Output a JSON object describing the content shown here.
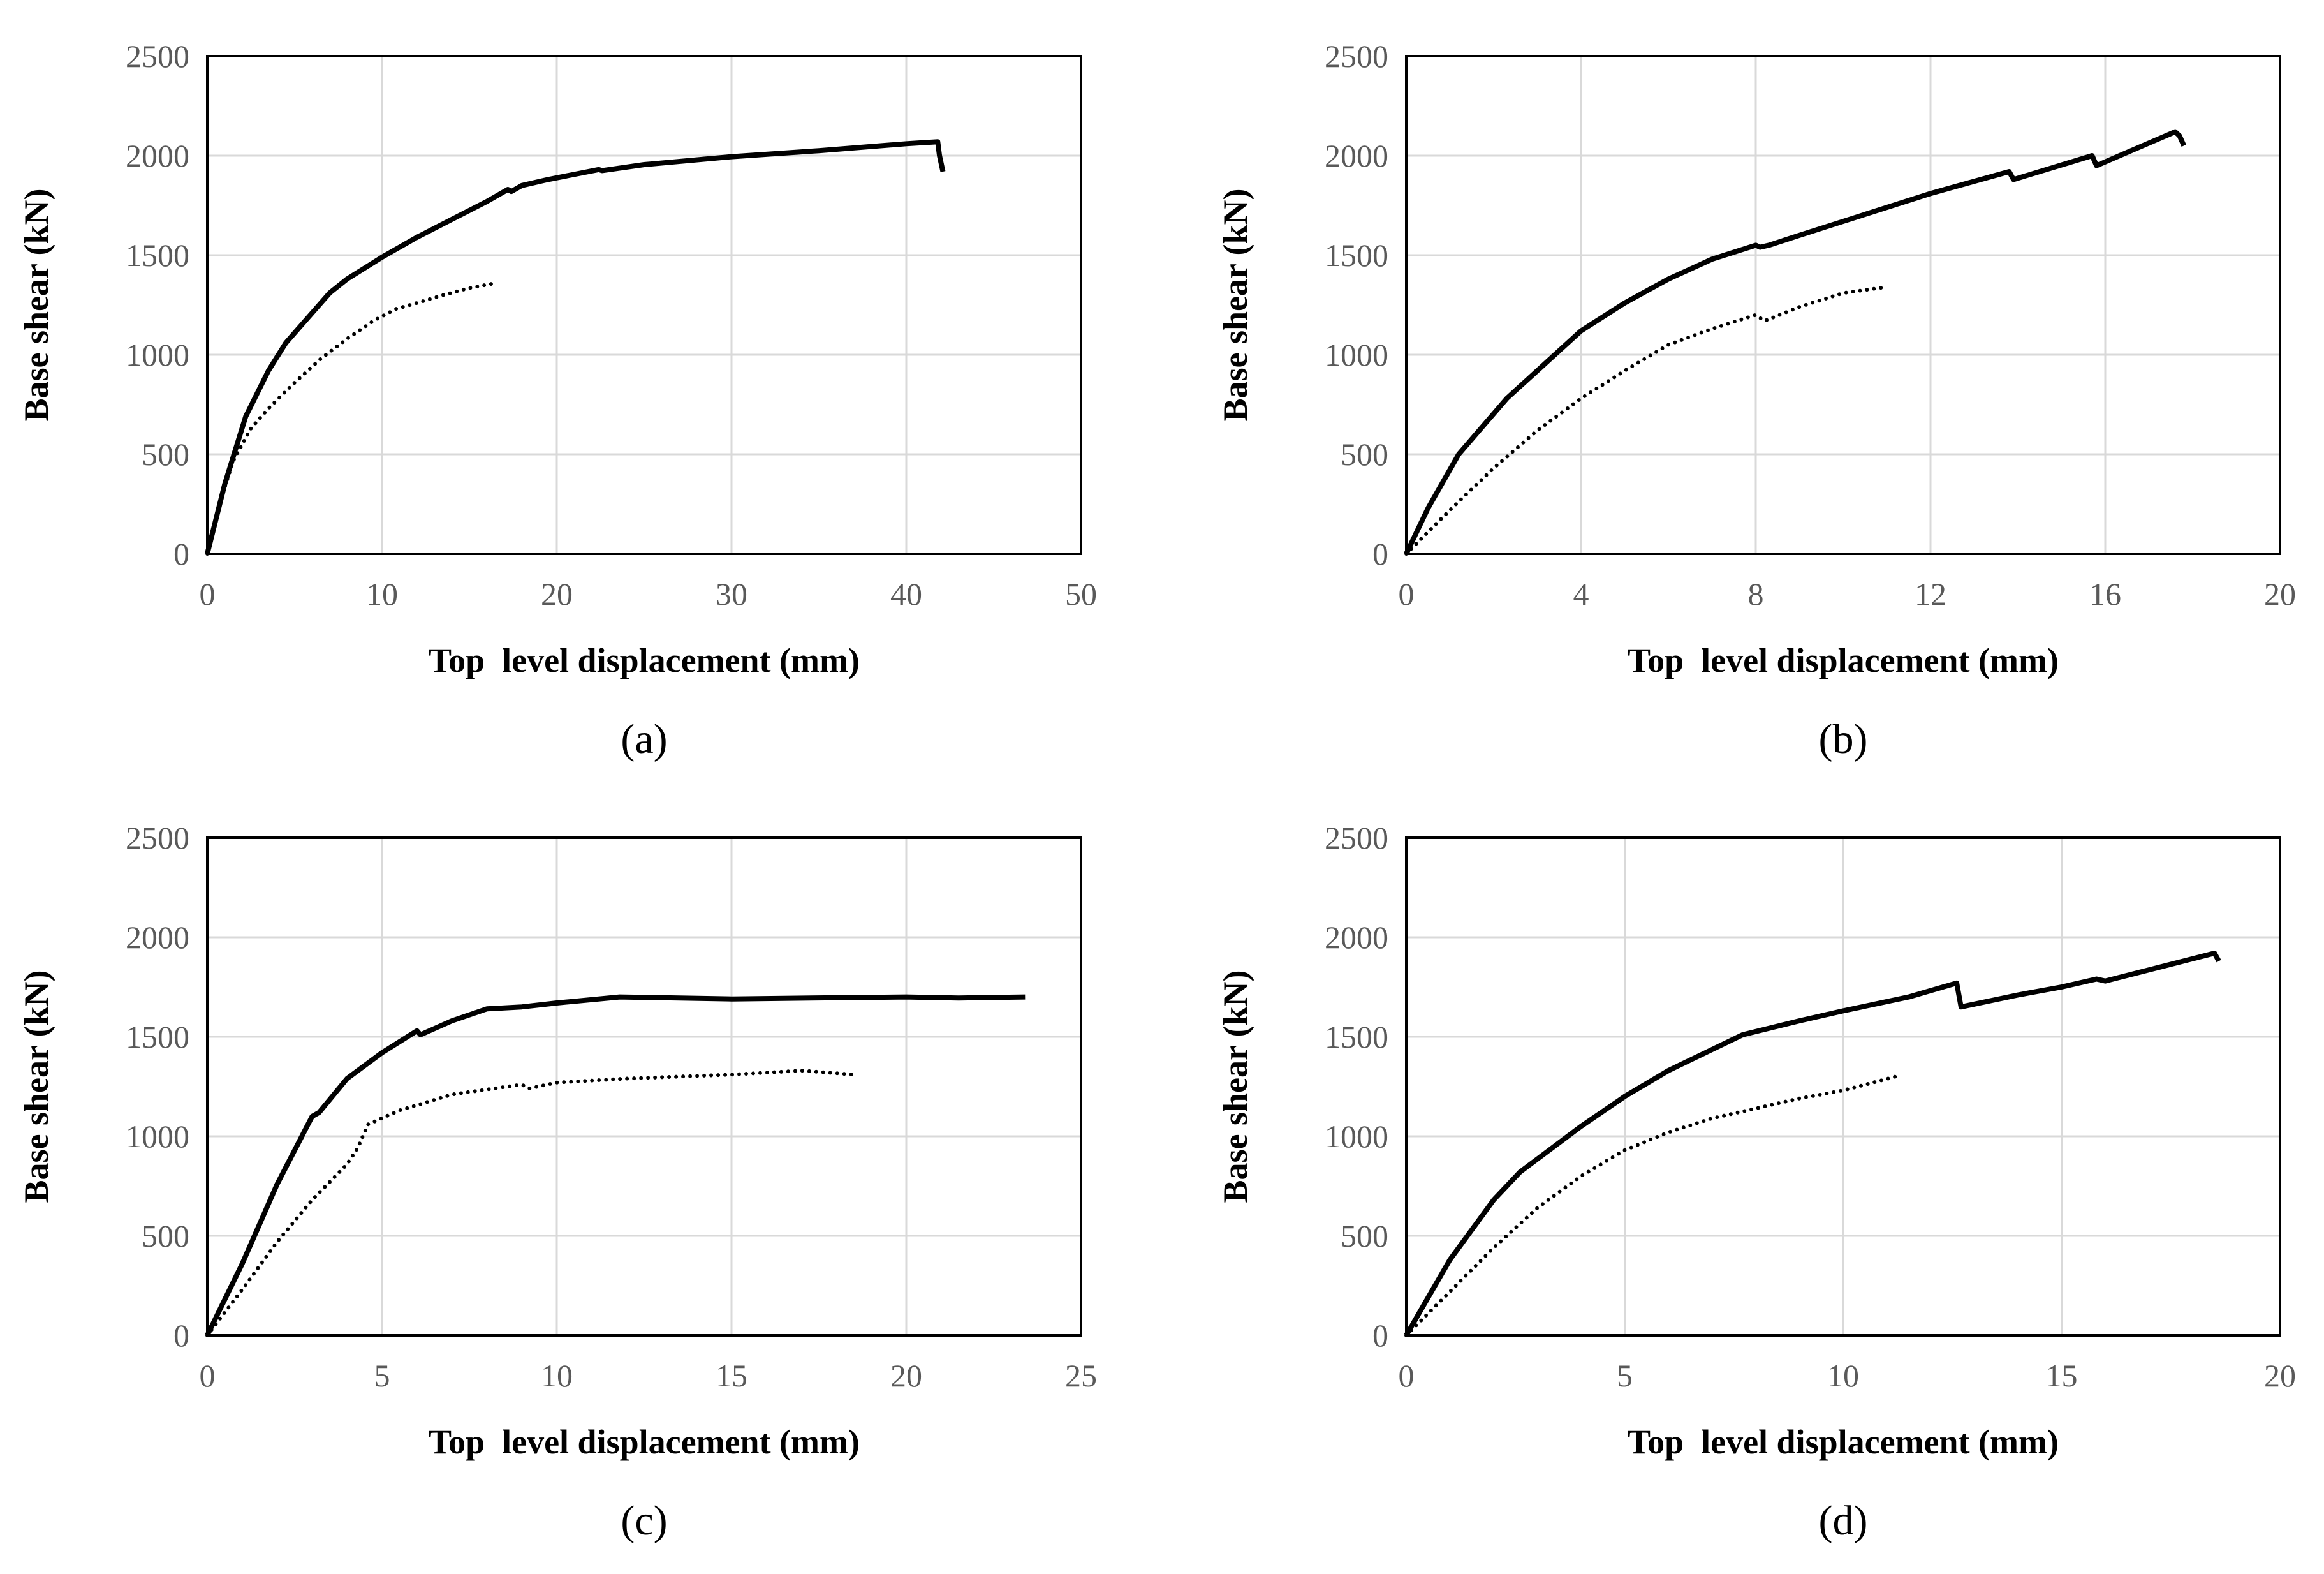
{
  "chart_data": [
    {
      "type": "line",
      "panel": "a",
      "caption": "(a)",
      "xlabel": "Top  level displacement (mm)",
      "ylabel": "Base shear (kN)",
      "xlim": [
        0,
        50
      ],
      "ylim": [
        0,
        2500
      ],
      "xticks": [
        0,
        10,
        20,
        30,
        40,
        50
      ],
      "yticks": [
        0,
        500,
        1000,
        1500,
        2000,
        2500
      ],
      "series": [
        {
          "name": "solid",
          "style": "solid",
          "x": [
            0,
            1,
            2.2,
            3.5,
            4.5,
            6,
            7,
            8,
            10,
            12,
            14,
            16,
            17.2,
            17.4,
            18,
            19.5,
            22.4,
            22.6,
            25,
            30,
            35,
            40,
            41.8,
            41.9,
            42.1
          ],
          "y": [
            0,
            350,
            690,
            920,
            1060,
            1210,
            1310,
            1380,
            1490,
            1590,
            1680,
            1770,
            1830,
            1820,
            1850,
            1880,
            1930,
            1925,
            1955,
            1995,
            2025,
            2060,
            2070,
            2000,
            1920
          ]
        },
        {
          "name": "dotted",
          "style": "dotted",
          "x": [
            0,
            0.8,
            1.5,
            2.5,
            3.5,
            5,
            6.5,
            8,
            9.5,
            10.8,
            12,
            13.5,
            15,
            16.5
          ],
          "y": [
            0,
            280,
            470,
            630,
            730,
            860,
            980,
            1080,
            1170,
            1230,
            1260,
            1300,
            1335,
            1360
          ]
        }
      ]
    },
    {
      "type": "line",
      "panel": "b",
      "caption": "(b)",
      "xlabel": "Top  level displacement (mm)",
      "ylabel": "Base shear (kN)",
      "xlim": [
        0,
        20
      ],
      "ylim": [
        0,
        2500
      ],
      "xticks": [
        0,
        4,
        8,
        12,
        16,
        20
      ],
      "yticks": [
        0,
        500,
        1000,
        1500,
        2000,
        2500
      ],
      "series": [
        {
          "name": "solid",
          "style": "solid",
          "x": [
            0,
            0.5,
            1.2,
            2.3,
            3,
            4,
            5,
            6,
            7,
            8,
            8.1,
            8.3,
            9,
            10,
            12,
            13.8,
            13.9,
            15.7,
            15.8,
            17.6,
            17.7,
            17.8
          ],
          "y": [
            0,
            230,
            500,
            780,
            920,
            1120,
            1260,
            1380,
            1480,
            1550,
            1540,
            1550,
            1600,
            1670,
            1810,
            1920,
            1880,
            2000,
            1950,
            2120,
            2100,
            2050
          ]
        },
        {
          "name": "dotted",
          "style": "dotted",
          "x": [
            0,
            1,
            2,
            3,
            4,
            5,
            6,
            7,
            8,
            8.2,
            9,
            10,
            11
          ],
          "y": [
            0,
            220,
            430,
            620,
            780,
            920,
            1050,
            1130,
            1200,
            1170,
            1240,
            1310,
            1340
          ]
        }
      ]
    },
    {
      "type": "line",
      "panel": "c",
      "caption": "(c)",
      "xlabel": "Top  level displacement (mm)",
      "ylabel": "Base shear (kN)",
      "xlim": [
        0,
        25
      ],
      "ylim": [
        0,
        2500
      ],
      "xticks": [
        0,
        5,
        10,
        15,
        20,
        25
      ],
      "yticks": [
        0,
        500,
        1000,
        1500,
        2000,
        2500
      ],
      "series": [
        {
          "name": "solid",
          "style": "solid",
          "x": [
            0,
            1,
            2,
            3,
            3.2,
            4,
            5,
            6,
            6.1,
            7,
            8,
            9,
            10,
            11.8,
            15,
            20,
            21.5,
            23.4
          ],
          "y": [
            0,
            360,
            760,
            1100,
            1120,
            1290,
            1420,
            1530,
            1510,
            1580,
            1640,
            1650,
            1670,
            1700,
            1690,
            1700,
            1695,
            1700
          ]
        },
        {
          "name": "dotted",
          "style": "dotted",
          "x": [
            0,
            1,
            2,
            3,
            4,
            4.3,
            4.6,
            5.5,
            7,
            9,
            9.2,
            10,
            12,
            15,
            17,
            18.5
          ],
          "y": [
            0,
            230,
            470,
            680,
            860,
            940,
            1060,
            1130,
            1210,
            1260,
            1240,
            1270,
            1290,
            1310,
            1330,
            1310
          ]
        }
      ]
    },
    {
      "type": "line",
      "panel": "d",
      "caption": "(d)",
      "xlabel": "Top  level displacement (mm)",
      "ylabel": "Base shear (kN)",
      "xlim": [
        0,
        20
      ],
      "ylim": [
        0,
        2500
      ],
      "xticks": [
        0,
        5,
        10,
        15,
        20
      ],
      "yticks": [
        0,
        500,
        1000,
        1500,
        2000,
        2500
      ],
      "series": [
        {
          "name": "solid",
          "style": "solid",
          "x": [
            0,
            1,
            2,
            2.6,
            4,
            5,
            6,
            7.7,
            9,
            10,
            11.5,
            12.6,
            12.7,
            14,
            15,
            15.8,
            16,
            18.5,
            18.6
          ],
          "y": [
            0,
            380,
            680,
            820,
            1050,
            1200,
            1330,
            1510,
            1580,
            1630,
            1700,
            1770,
            1650,
            1710,
            1750,
            1790,
            1780,
            1920,
            1880
          ]
        },
        {
          "name": "dotted",
          "style": "dotted",
          "x": [
            0,
            1,
            2,
            3,
            4,
            5,
            6,
            7,
            8,
            9,
            10,
            11.2
          ],
          "y": [
            0,
            220,
            440,
            640,
            800,
            930,
            1020,
            1090,
            1140,
            1190,
            1230,
            1300
          ]
        }
      ]
    }
  ]
}
